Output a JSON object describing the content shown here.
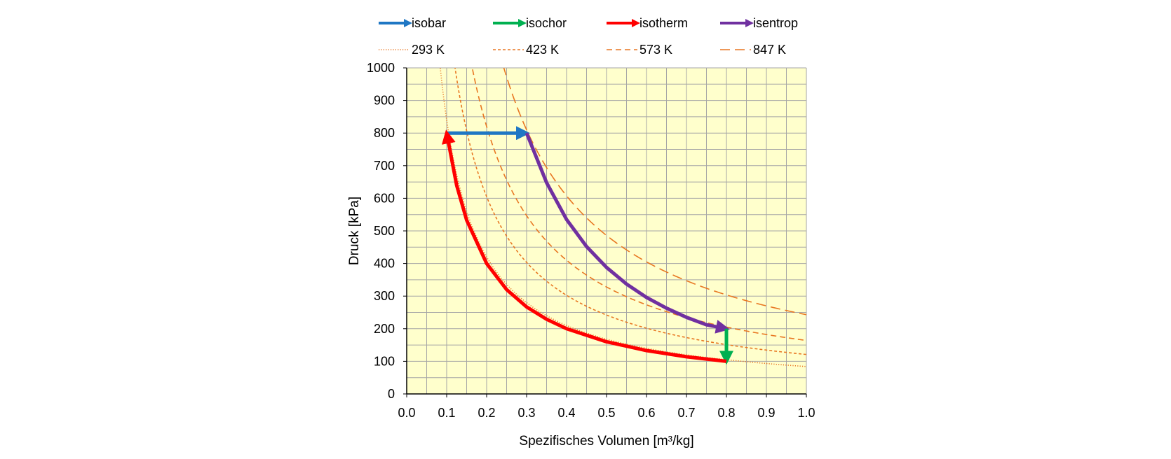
{
  "chart_data": {
    "type": "line",
    "title": "",
    "xlabel": "Spezifisches Volumen [m³/kg]",
    "ylabel": "Druck  [kPa]",
    "xlim": [
      0.0,
      1.0
    ],
    "ylim": [
      0,
      1000
    ],
    "x_ticks": [
      "0.0",
      "0.1",
      "0.2",
      "0.3",
      "0.4",
      "0.5",
      "0.6",
      "0.7",
      "0.8",
      "0.9",
      "1.0"
    ],
    "y_ticks": [
      "0",
      "100",
      "200",
      "300",
      "400",
      "500",
      "600",
      "700",
      "800",
      "900",
      "1000"
    ],
    "grid": true,
    "background_color": "#ffffcc",
    "legend": [
      {
        "label": "isobar",
        "color": "#1f77c4",
        "style": "arrow"
      },
      {
        "label": "isochor",
        "color": "#00b050",
        "style": "arrow"
      },
      {
        "label": "isotherm",
        "color": "#ff0000",
        "style": "arrow"
      },
      {
        "label": "isentrop",
        "color": "#7030a0",
        "style": "arrow"
      },
      {
        "label": "293 K",
        "color": "#e87722",
        "style": "dotted"
      },
      {
        "label": "423 K",
        "color": "#e87722",
        "style": "short-dash"
      },
      {
        "label": "573 K",
        "color": "#e87722",
        "style": "dash"
      },
      {
        "label": "847 K",
        "color": "#e87722",
        "style": "long-dash"
      }
    ],
    "reference_isotherms": [
      {
        "name": "293 K",
        "pv_constant": 84,
        "style": "dotted"
      },
      {
        "name": "423 K",
        "pv_constant": 121,
        "style": "short-dash"
      },
      {
        "name": "573 K",
        "pv_constant": 164,
        "style": "dash"
      },
      {
        "name": "847 K",
        "pv_constant": 243,
        "style": "long-dash"
      }
    ],
    "process_series": [
      {
        "name": "isobar",
        "color": "#1f77c4",
        "x": [
          0.1,
          0.3
        ],
        "y": [
          800,
          800
        ]
      },
      {
        "name": "isentrop",
        "color": "#7030a0",
        "x": [
          0.3,
          0.35,
          0.4,
          0.45,
          0.5,
          0.55,
          0.6,
          0.65,
          0.7,
          0.75,
          0.8
        ],
        "y": [
          800,
          648,
          535,
          452,
          388,
          337,
          296,
          263,
          235,
          212,
          200
        ]
      },
      {
        "name": "isochor",
        "color": "#00b050",
        "x": [
          0.8,
          0.8
        ],
        "y": [
          200,
          100
        ]
      },
      {
        "name": "isotherm",
        "color": "#ff0000",
        "x": [
          0.8,
          0.7,
          0.6,
          0.5,
          0.4,
          0.35,
          0.3,
          0.25,
          0.2,
          0.15,
          0.125,
          0.1
        ],
        "y": [
          100,
          114,
          133,
          160,
          200,
          229,
          267,
          320,
          400,
          533,
          640,
          800
        ]
      }
    ]
  }
}
